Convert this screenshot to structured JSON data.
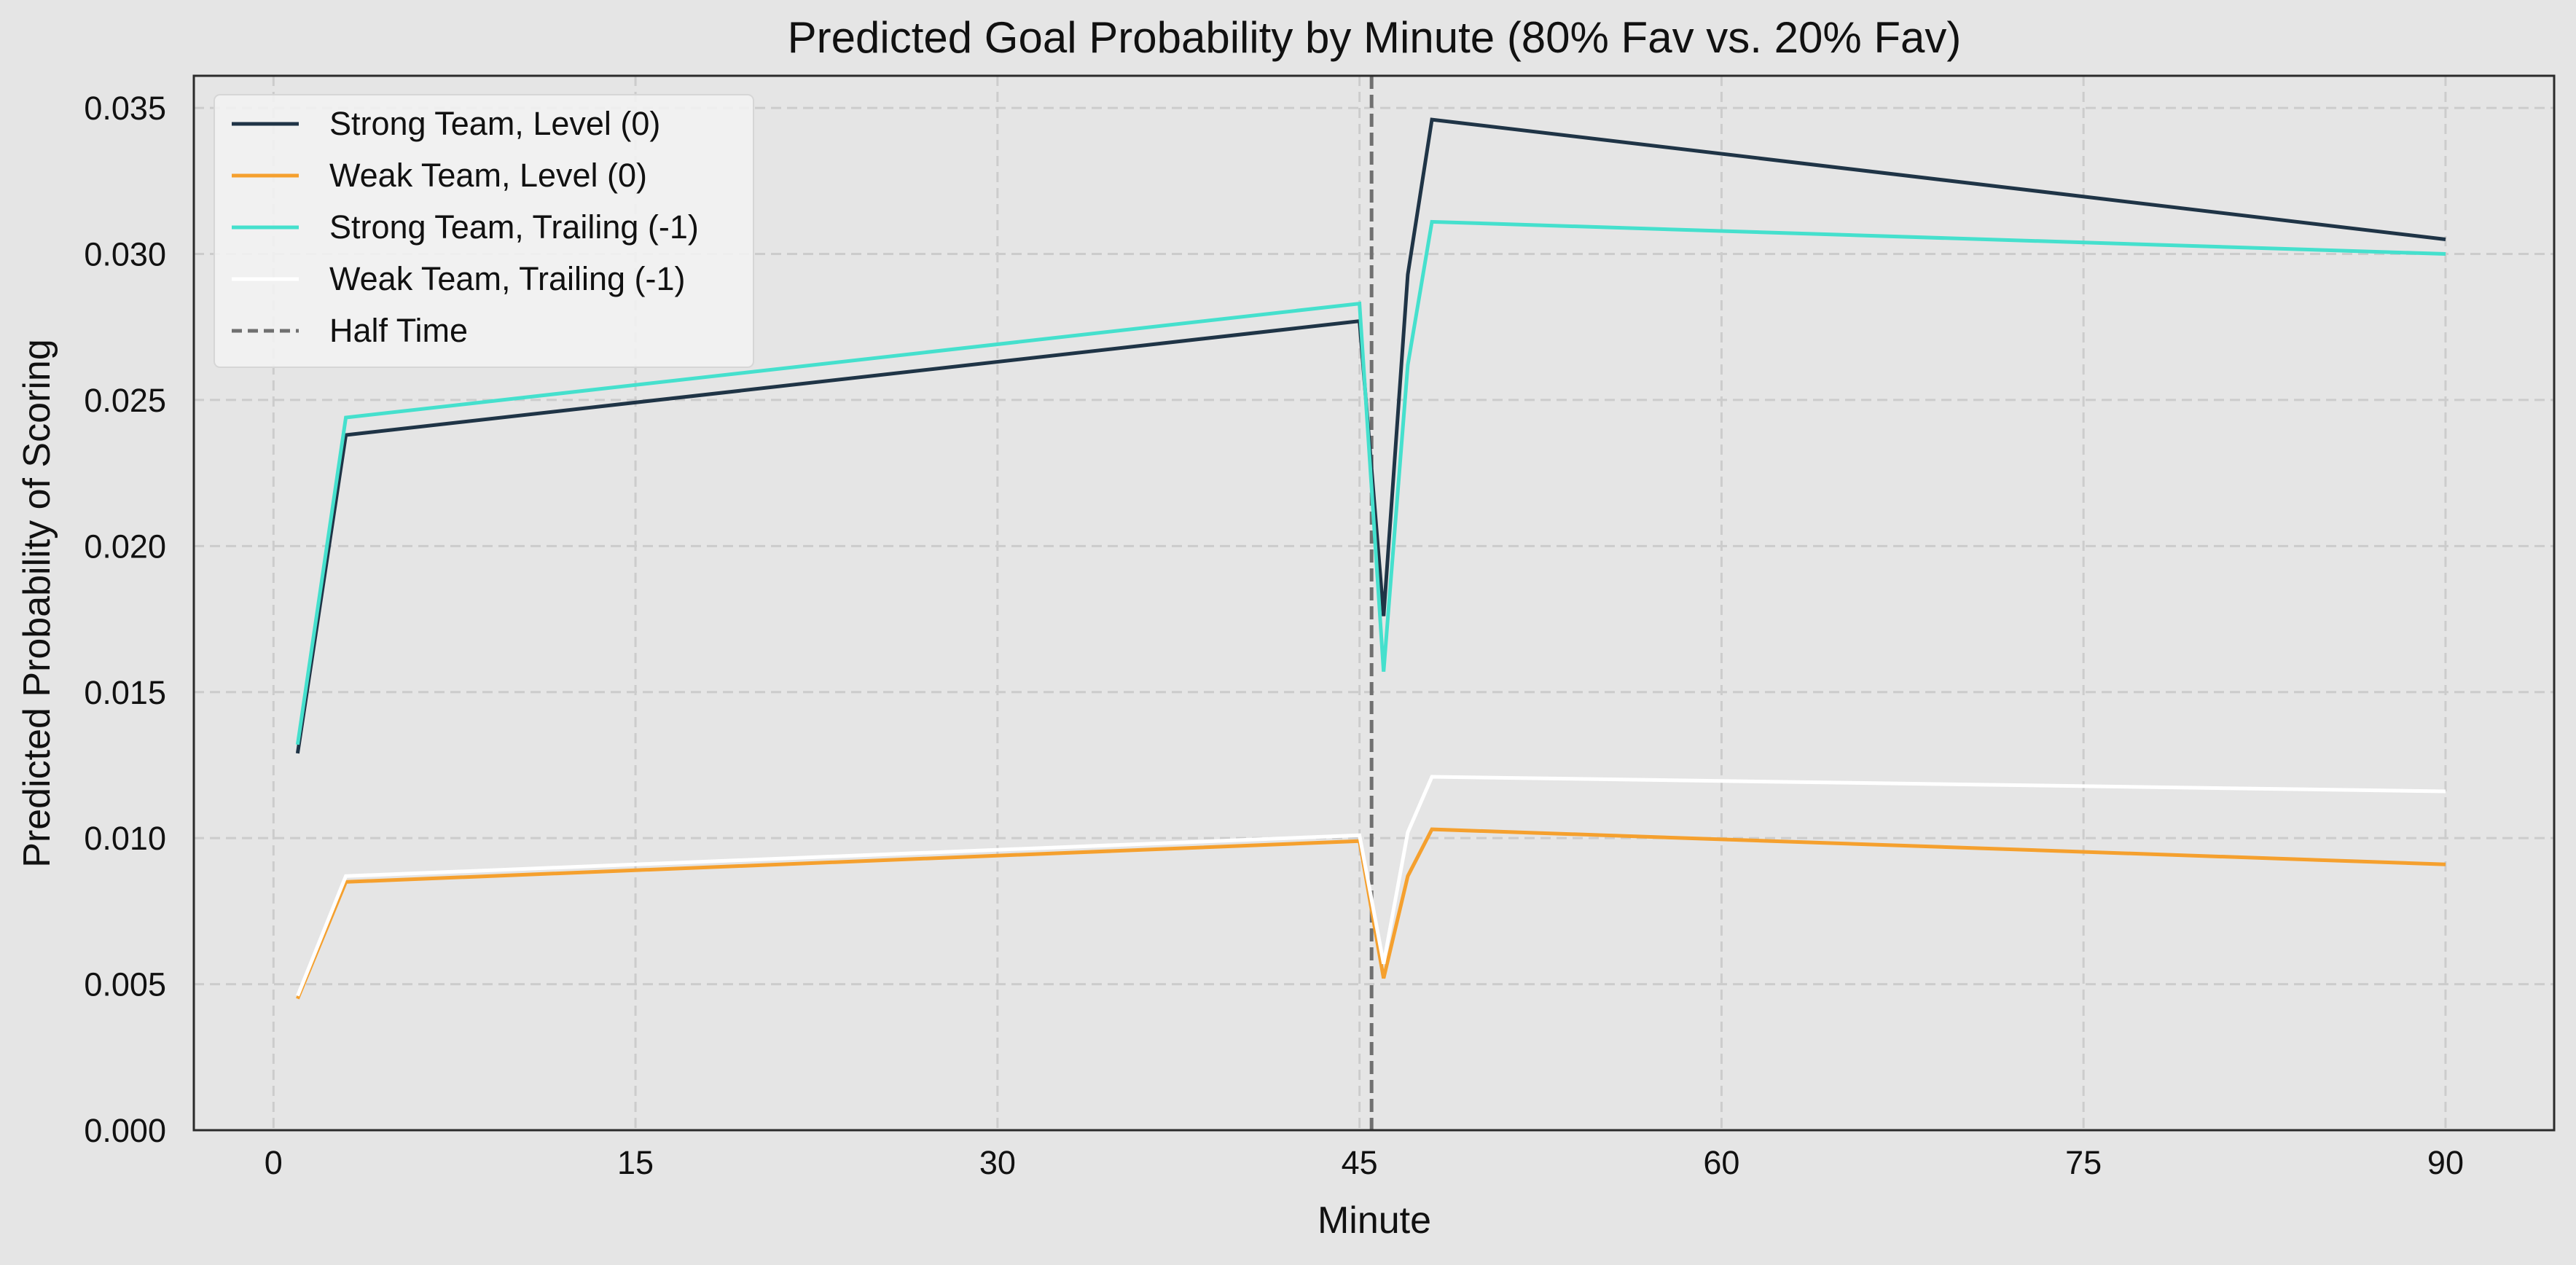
{
  "chart_data": {
    "type": "line",
    "title": "Predicted Goal Probability by Minute (80% Fav vs. 20% Fav)",
    "xlabel": "Minute",
    "ylabel": "Predicted Probability of Scoring",
    "xlim": [
      -3.3,
      94.5
    ],
    "ylim": [
      0,
      0.0361
    ],
    "xticks": [
      0,
      15,
      30,
      45,
      60,
      75,
      90
    ],
    "xtick_labels": [
      "0",
      "15",
      "30",
      "45",
      "60",
      "75",
      "90"
    ],
    "yticks": [
      0,
      0.005,
      0.01,
      0.015,
      0.02,
      0.025,
      0.03,
      0.035
    ],
    "ytick_labels": [
      "0.000",
      "0.005",
      "0.010",
      "0.015",
      "0.020",
      "0.025",
      "0.030",
      "0.035"
    ],
    "grid": true,
    "legend_position": "top-left",
    "x": [
      1,
      3,
      45,
      46,
      47,
      48,
      90
    ],
    "series": [
      {
        "name": "Strong Team, Level (0)",
        "color": "#1f3446",
        "dash": "solid",
        "values": [
          0.0129,
          0.0238,
          0.0277,
          0.0176,
          0.0293,
          0.0346,
          0.0305
        ]
      },
      {
        "name": "Weak Team, Level (0)",
        "color": "#f5a02e",
        "dash": "solid",
        "values": [
          0.0045,
          0.0085,
          0.0099,
          0.0052,
          0.0087,
          0.0103,
          0.0091
        ]
      },
      {
        "name": "Strong Team, Trailing (-1)",
        "color": "#45e0cd",
        "dash": "solid",
        "values": [
          0.0132,
          0.0244,
          0.0283,
          0.0157,
          0.0262,
          0.0311,
          0.03
        ]
      },
      {
        "name": "Weak Team, Trailing (-1)",
        "color": "#ffffff",
        "dash": "solid",
        "values": [
          0.0046,
          0.0087,
          0.0101,
          0.0057,
          0.0102,
          0.0121,
          0.0116
        ]
      }
    ],
    "reference_lines": [
      {
        "name": "Half Time",
        "x": 45.5,
        "color": "#707070",
        "dash": "dashed"
      }
    ],
    "legend": [
      "Strong Team, Level (0)",
      "Weak Team, Level (0)",
      "Strong Team, Trailing (-1)",
      "Weak Team, Trailing (-1)",
      "Half Time"
    ]
  }
}
